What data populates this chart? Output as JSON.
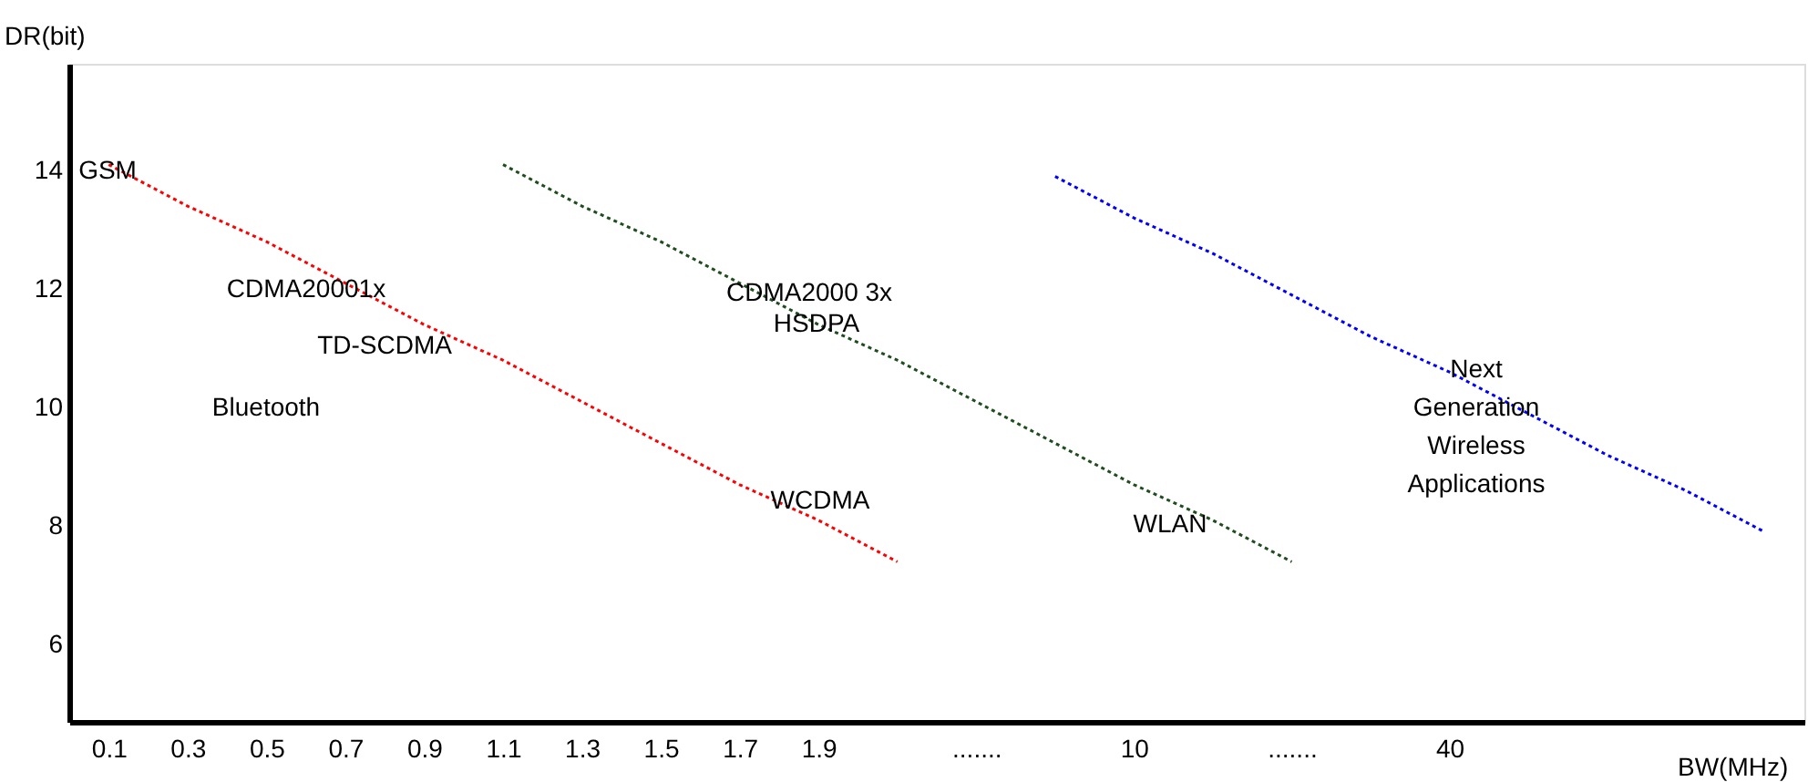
{
  "chart_data": {
    "type": "line",
    "xlabel": "BW(MHz)",
    "ylabel": "DR(bit)",
    "categories": [
      "0.1",
      "0.3",
      "0.5",
      "0.7",
      "0.9",
      "1.1",
      "1.3",
      "1.5",
      "1.7",
      "1.9",
      null,
      ".......",
      null,
      "10",
      null,
      ".......",
      null,
      "40",
      null,
      null,
      null,
      null
    ],
    "ylim": [
      4.7,
      15.8
    ],
    "yticks": [
      6,
      8,
      10,
      12,
      14
    ],
    "grid": false,
    "legend": false,
    "marker": "none",
    "line_style": "dotted",
    "series": [
      {
        "color": "#ff0000",
        "values": [
          14.1,
          13.4,
          12.8,
          12.1,
          11.4,
          10.8,
          10.1,
          9.4,
          8.7,
          8.1,
          7.4,
          null,
          null,
          null,
          null,
          null,
          null,
          null,
          null,
          null,
          null,
          null
        ]
      },
      {
        "color": "#1e4d1e",
        "values": [
          null,
          null,
          null,
          null,
          null,
          14.1,
          13.4,
          12.8,
          12.1,
          11.4,
          10.8,
          10.1,
          9.4,
          8.7,
          8.1,
          7.4,
          null,
          null,
          null,
          null,
          null,
          null
        ]
      },
      {
        "color": "#0000ff",
        "values": [
          null,
          null,
          null,
          null,
          null,
          null,
          null,
          null,
          null,
          null,
          null,
          null,
          13.9,
          13.2,
          12.6,
          11.9,
          11.2,
          10.6,
          9.9,
          9.2,
          8.6,
          7.9
        ]
      }
    ],
    "annotations": [
      "GSM",
      "CDMA20001x",
      "TD-SCDMA",
      "Bluetooth",
      "CDMA2000 3x",
      "HSDPA",
      "WCDMA",
      "WLAN",
      "Next Generation Wireless Applications"
    ]
  }
}
